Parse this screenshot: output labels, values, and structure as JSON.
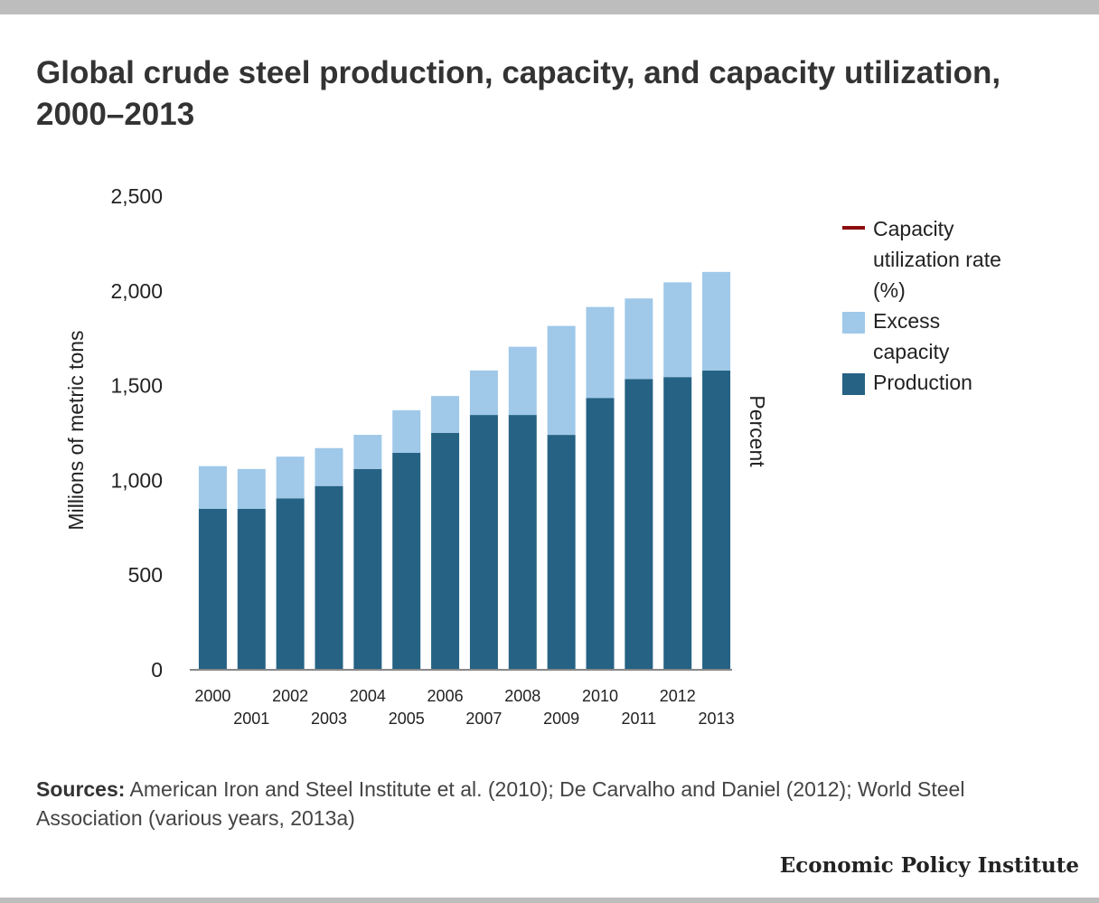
{
  "title": "Global crude steel production, capacity, and capacity utilization, 2000–2013",
  "sources": {
    "label": "Sources:",
    "text": " American Iron and Steel Institute et al. (2010); De Carvalho and Daniel (2012); World Steel Association (various years, 2013a)"
  },
  "brand": "Economic Policy Institute",
  "colors": {
    "production": "#256284",
    "excess_capacity": "#9fc8e9",
    "capacity_utilization": "#8b0d0d",
    "axis": "#888888",
    "text": "#222222"
  },
  "legend": [
    {
      "label": "Capacity utilization rate (%)",
      "kind": "line",
      "color": "#8b0d0d"
    },
    {
      "label": "Excess capacity",
      "kind": "box",
      "color": "#9fc8e9"
    },
    {
      "label": "Production",
      "kind": "box",
      "color": "#256284"
    }
  ],
  "chart_data": {
    "type": "bar",
    "stacked": true,
    "title": "Global crude steel production, capacity, and capacity utilization, 2000–2013",
    "categories": [
      "2000",
      "2001",
      "2002",
      "2003",
      "2004",
      "2005",
      "2006",
      "2007",
      "2008",
      "2009",
      "2010",
      "2011",
      "2012",
      "2013"
    ],
    "series": [
      {
        "name": "Production",
        "color": "#256284",
        "values": [
          850,
          850,
          905,
          970,
          1060,
          1145,
          1250,
          1345,
          1345,
          1240,
          1435,
          1535,
          1545,
          1580
        ]
      },
      {
        "name": "Excess capacity",
        "color": "#9fc8e9",
        "values": [
          225,
          210,
          220,
          200,
          180,
          225,
          195,
          235,
          360,
          575,
          480,
          425,
          500,
          520
        ]
      }
    ],
    "ylabel": "Millions of metric tons",
    "y2label": "Percent",
    "ylim": [
      0,
      2500
    ],
    "yticks": [
      0,
      500,
      1000,
      1500,
      2000,
      2500
    ],
    "ytick_labels": [
      "0",
      "500",
      "1,000",
      "1,500",
      "2,000",
      "2,500"
    ],
    "grid": false,
    "legend_position": "right"
  }
}
